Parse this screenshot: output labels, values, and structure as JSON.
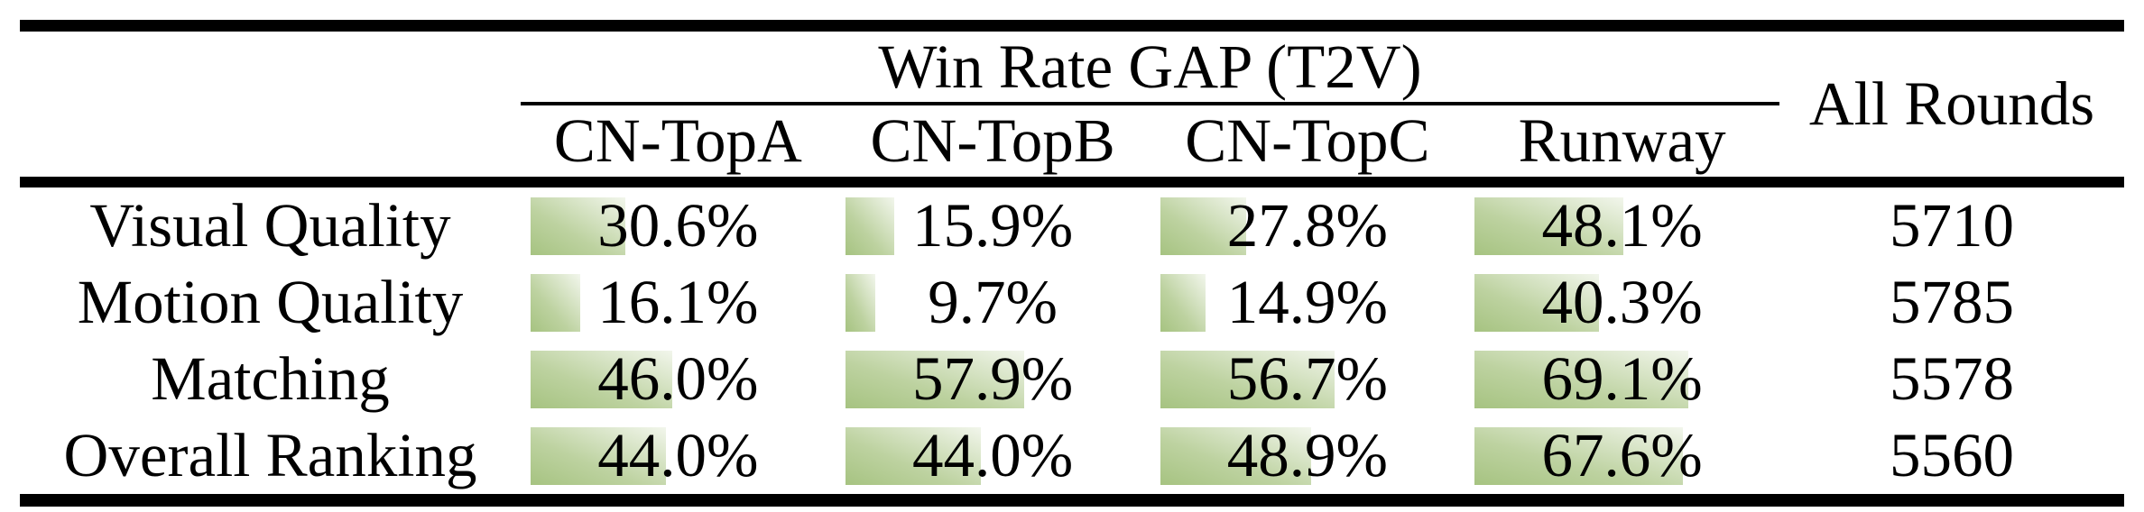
{
  "page": {
    "background": "#ffffff",
    "text_color": "#000000",
    "rule_color": "#000000"
  },
  "table": {
    "group_header": "Win Rate GAP (T2V)",
    "all_rounds_header": "All Rounds",
    "columns": [
      "CN-TopA",
      "CN-TopB",
      "CN-TopC",
      "Runway"
    ],
    "rows": [
      {
        "label": "Visual Quality",
        "cells": [
          {
            "text": "30.6%",
            "pct": 30.6
          },
          {
            "text": "15.9%",
            "pct": 15.9
          },
          {
            "text": "27.8%",
            "pct": 27.8
          },
          {
            "text": "48.1%",
            "pct": 48.1
          }
        ],
        "all_rounds": "5710"
      },
      {
        "label": "Motion Quality",
        "cells": [
          {
            "text": "16.1%",
            "pct": 16.1
          },
          {
            "text": "9.7%",
            "pct": 9.7
          },
          {
            "text": "14.9%",
            "pct": 14.9
          },
          {
            "text": "40.3%",
            "pct": 40.3
          }
        ],
        "all_rounds": "5785"
      },
      {
        "label": "Matching",
        "cells": [
          {
            "text": "46.0%",
            "pct": 46.0
          },
          {
            "text": "57.9%",
            "pct": 57.9
          },
          {
            "text": "56.7%",
            "pct": 56.7
          },
          {
            "text": "69.1%",
            "pct": 69.1
          }
        ],
        "all_rounds": "5578"
      },
      {
        "label": "Overall Ranking",
        "cells": [
          {
            "text": "44.0%",
            "pct": 44.0
          },
          {
            "text": "44.0%",
            "pct": 44.0
          },
          {
            "text": "48.9%",
            "pct": 48.9
          },
          {
            "text": "67.6%",
            "pct": 67.6
          }
        ],
        "all_rounds": "5560"
      }
    ],
    "bar_gradient": {
      "from": "#a6c381",
      "mid": "#bdd2a0",
      "to": "#f2f6ec"
    }
  },
  "chart_data": {
    "type": "table",
    "title": "Win Rate GAP (T2V)",
    "columns": [
      "CN-TopA",
      "CN-TopB",
      "CN-TopC",
      "Runway",
      "All Rounds"
    ],
    "rows": [
      [
        "Visual Quality",
        "30.6%",
        "15.9%",
        "27.8%",
        "48.1%",
        5710
      ],
      [
        "Motion Quality",
        "16.1%",
        "9.7%",
        "14.9%",
        "40.3%",
        5785
      ],
      [
        "Matching",
        "46.0%",
        "57.9%",
        "56.7%",
        "69.1%",
        5578
      ],
      [
        "Overall Ranking",
        "44.0%",
        "44.0%",
        "48.9%",
        "67.6%",
        5560
      ]
    ]
  }
}
